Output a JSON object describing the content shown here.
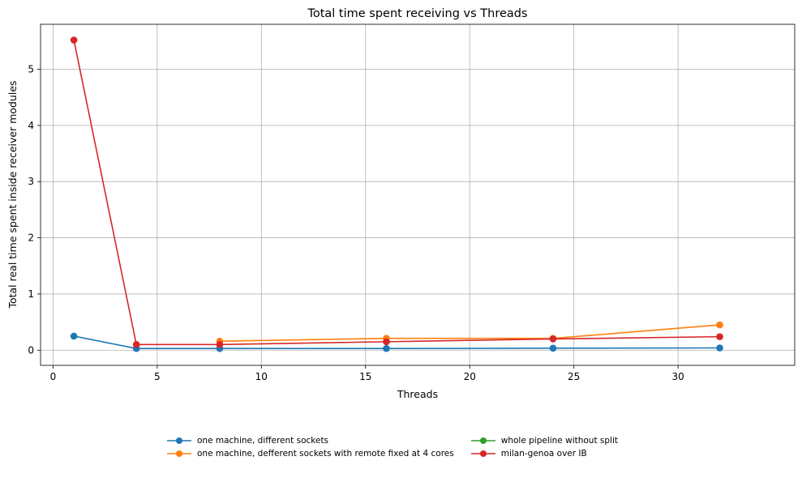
{
  "chart_data": {
    "type": "line",
    "title": "Total time spent receiving vs Threads",
    "xlabel": "Threads",
    "ylabel": "Total real time spent inside receiver modules",
    "xlim": [
      -0.6,
      35.6
    ],
    "ylim": [
      -0.27,
      5.8
    ],
    "xticks": [
      0,
      5,
      10,
      15,
      20,
      25,
      30
    ],
    "yticks": [
      0,
      1,
      2,
      3,
      4,
      5
    ],
    "grid": true,
    "legend_position": "bottom-center",
    "series": [
      {
        "name": "one machine, different sockets",
        "color": "#1f77b4",
        "x": [
          1,
          4,
          8,
          16,
          24,
          32
        ],
        "y": [
          0.25,
          0.03,
          0.03,
          0.03,
          0.035,
          0.04
        ]
      },
      {
        "name": "one machine, defferent sockets with remote fixed at 4 cores",
        "color": "#ff7f0e",
        "x": [
          8,
          16,
          24,
          32
        ],
        "y": [
          0.16,
          0.21,
          0.21,
          0.45
        ]
      },
      {
        "name": "whole pipeline without split",
        "color": "#2ca02c",
        "x": [],
        "y": []
      },
      {
        "name": "milan-genoa over IB",
        "color": "#d62728",
        "x": [
          1,
          4,
          8,
          16,
          24,
          32
        ],
        "y": [
          5.52,
          0.1,
          0.1,
          0.15,
          0.2,
          0.24
        ]
      }
    ]
  }
}
